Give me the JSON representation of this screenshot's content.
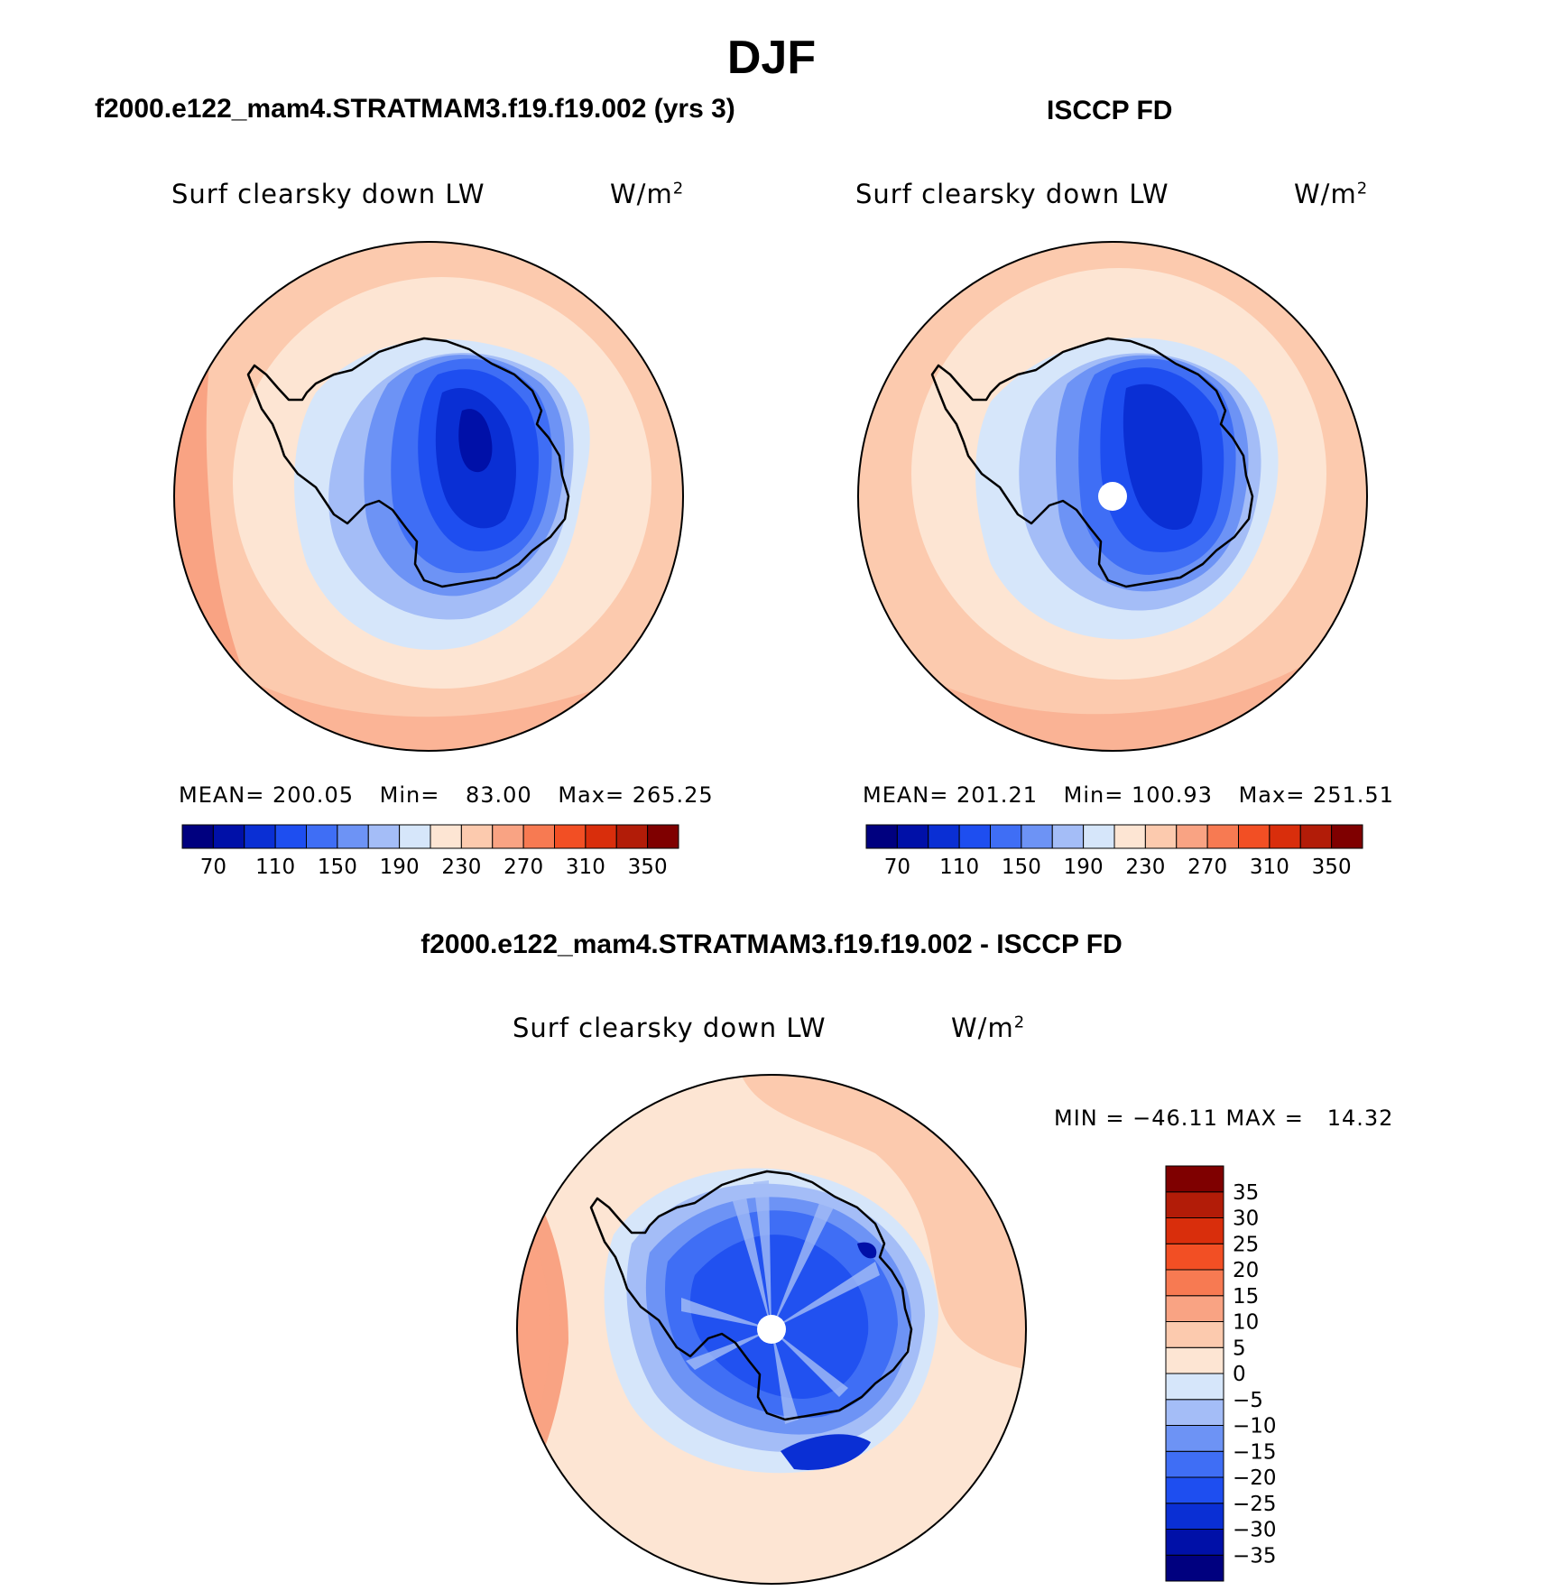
{
  "page_title": "DJF",
  "panels": [
    {
      "title": "f2000.e122_mam4.STRATMAM3.f19.f19.002 (yrs 3)",
      "variable": "Surf clearsky down LW",
      "units_base": "W/m",
      "units_exp": "2",
      "stats": {
        "mean_label": "MEAN=",
        "mean": "200.05",
        "min_label": "Min=",
        "min": "83.00",
        "max_label": "Max=",
        "max": "265.25"
      },
      "map_shows_pole_hole": false
    },
    {
      "title": "ISCCP FD",
      "variable": "Surf clearsky down LW",
      "units_base": "W/m",
      "units_exp": "2",
      "stats": {
        "mean_label": "MEAN=",
        "mean": "201.21",
        "min_label": "Min=",
        "min": "100.93",
        "max_label": "Max=",
        "max": "251.51"
      },
      "map_shows_pole_hole": true
    },
    {
      "title": "f2000.e122_mam4.STRATMAM3.f19.f19.002 - ISCCP FD",
      "variable": "Surf clearsky down LW",
      "units_base": "W/m",
      "units_exp": "2",
      "stats_text": "MIN = −46.11 MAX =   14.32",
      "map_shows_pole_hole": true
    }
  ],
  "colorbar_abs": {
    "colors": [
      "#00007f",
      "#0010a8",
      "#0a2fd4",
      "#1e4ef0",
      "#3f6ef5",
      "#6d93f5",
      "#a4bdf7",
      "#d6e6fa",
      "#fde5d3",
      "#fccaae",
      "#f9a383",
      "#f77a52",
      "#f24f24",
      "#d92e0c",
      "#b21c08",
      "#7f0000"
    ],
    "tick_labels": [
      "70",
      "110",
      "150",
      "190",
      "230",
      "270",
      "310",
      "350"
    ]
  },
  "colorbar_diff": {
    "colors": [
      "#00007f",
      "#0010a8",
      "#0a2fd4",
      "#1e4ef0",
      "#3f6ef5",
      "#6d93f5",
      "#a4bdf7",
      "#d6e6fa",
      "#fde5d3",
      "#fccaae",
      "#f9a383",
      "#f77a52",
      "#f24f24",
      "#d92e0c",
      "#b21c08",
      "#7f0000"
    ],
    "tick_labels": [
      "35",
      "30",
      "25",
      "20",
      "15",
      "10",
      "5",
      "0",
      "−5",
      "−10",
      "−15",
      "−20",
      "−25",
      "−30",
      "−35"
    ]
  }
}
